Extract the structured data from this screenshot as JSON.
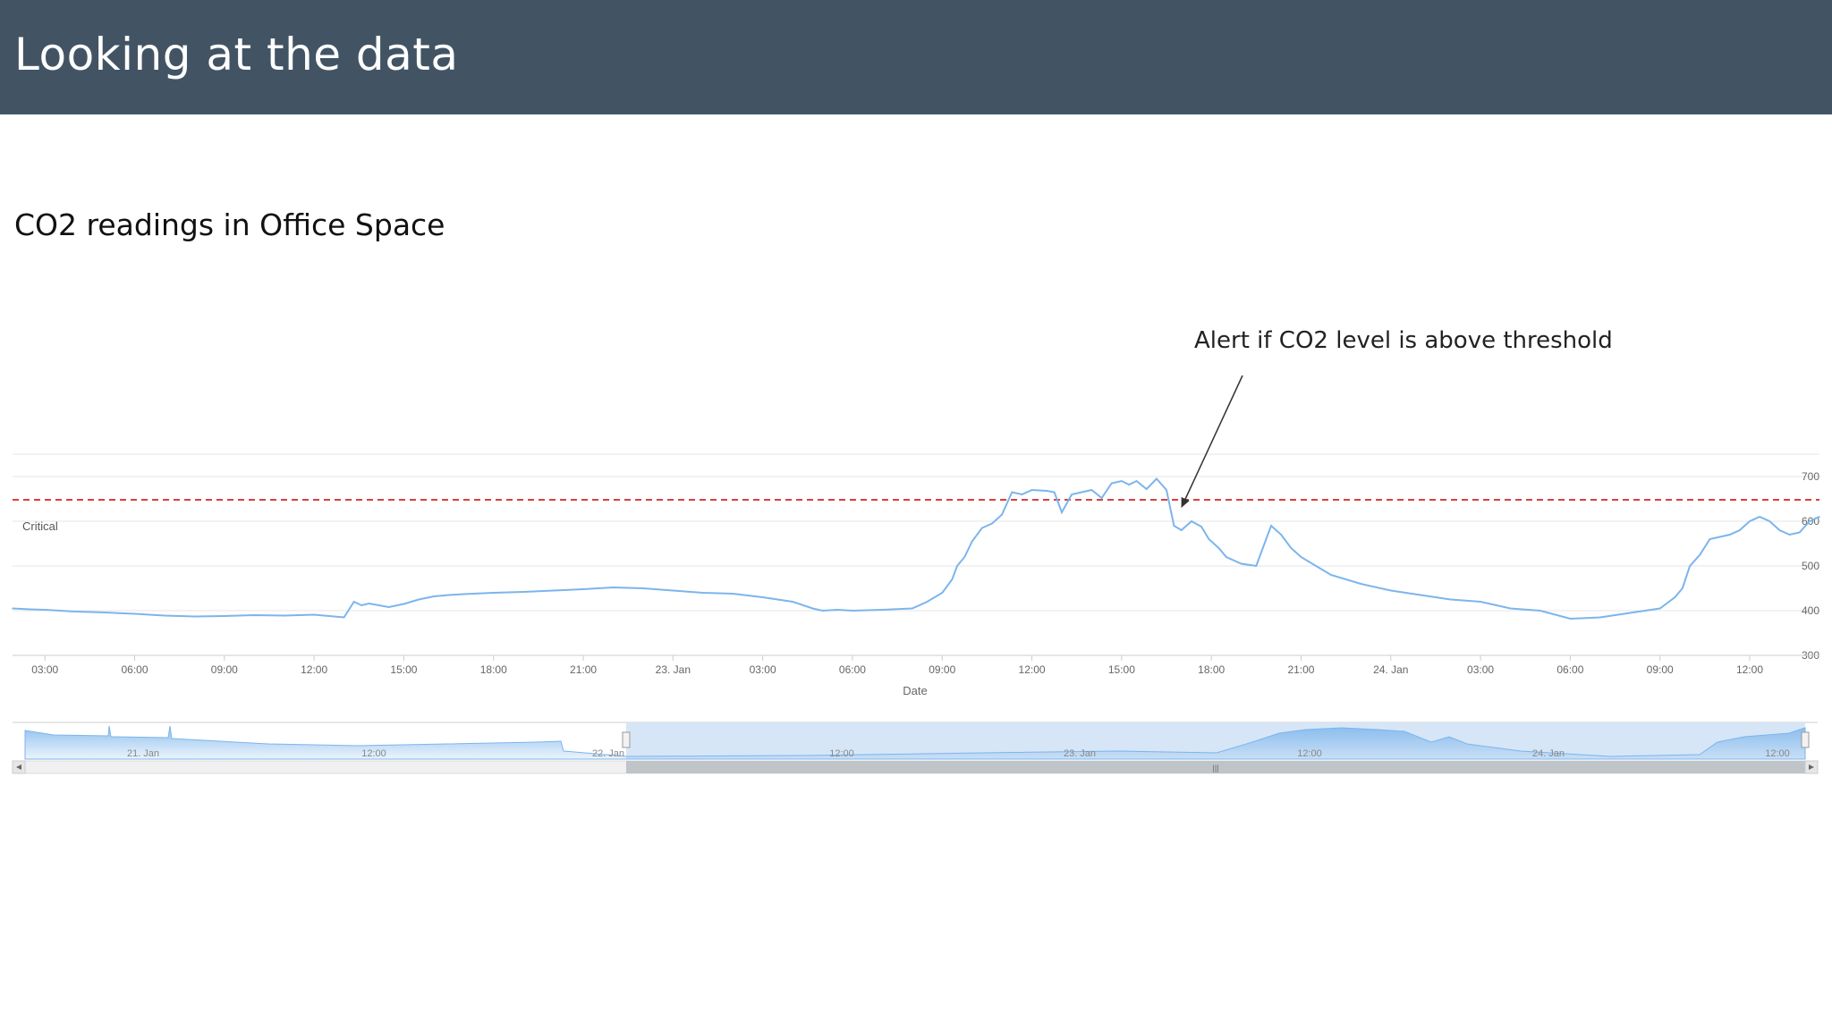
{
  "slide": {
    "title": "Looking at the data",
    "chart_title": "CO2 readings in Office Space",
    "callout": "Alert if CO2 level is above threshold"
  },
  "colors": {
    "header_bg": "#425464",
    "series": "#7cb5ec",
    "threshold": "#d94040",
    "grid": "#e6e6e6",
    "navigator_mask": "#d6e6f7",
    "scrollbar": "#bfc4c9"
  },
  "chart_data": {
    "type": "line",
    "title": "CO2 readings in Office Space",
    "xlabel": "Date",
    "ylabel": "",
    "x_range": [
      "2021-01-22T01:55",
      "2021-01-24T14:20"
    ],
    "ylim": [
      300,
      750
    ],
    "yticks": [
      300,
      400,
      500,
      600,
      700
    ],
    "xticks": [
      "03:00",
      "06:00",
      "09:00",
      "12:00",
      "15:00",
      "18:00",
      "21:00",
      "23. Jan",
      "03:00",
      "06:00",
      "09:00",
      "12:00",
      "15:00",
      "18:00",
      "21:00",
      "24. Jan",
      "03:00",
      "06:00",
      "09:00",
      "12:00"
    ],
    "grid": true,
    "threshold": {
      "label": "Critical",
      "value": 648
    },
    "series": [
      {
        "x": [
          "22T01:55",
          "22T02:30",
          "22T03:00",
          "22T04:00",
          "22T05:00",
          "22T06:00",
          "22T07:00",
          "22T08:00",
          "22T09:00",
          "22T10:00",
          "22T11:00",
          "22T12:00",
          "22T13:00",
          "22T13:20",
          "22T13:35",
          "22T13:50",
          "22T14:30",
          "22T15:00",
          "22T15:30",
          "22T16:00",
          "22T16:30",
          "22T17:00",
          "22T18:00",
          "22T19:00",
          "22T20:00",
          "22T21:00",
          "22T22:00",
          "22T23:00",
          "23T00:00",
          "23T01:00",
          "23T02:00",
          "23T03:00",
          "23T04:00",
          "23T04:40",
          "23T05:00",
          "23T05:30",
          "23T06:00",
          "23T07:00",
          "23T08:00",
          "23T08:30",
          "23T09:00",
          "23T09:20",
          "23T09:30",
          "23T09:45",
          "23T10:00",
          "23T10:20",
          "23T10:40",
          "23T11:00",
          "23T11:20",
          "23T11:40",
          "23T12:00",
          "23T12:30",
          "23T12:45",
          "23T13:00",
          "23T13:20",
          "23T13:40",
          "23T14:00",
          "23T14:20",
          "23T14:40",
          "23T15:00",
          "23T15:15",
          "23T15:30",
          "23T15:50",
          "23T16:10",
          "23T16:30",
          "23T16:45",
          "23T17:00",
          "23T17:20",
          "23T17:40",
          "23T17:55",
          "23T18:15",
          "23T18:30",
          "23T19:00",
          "23T19:30",
          "23T20:00",
          "23T20:20",
          "23T20:40",
          "23T21:00",
          "23T21:30",
          "23T22:00",
          "23T23:00",
          "24T00:00",
          "24T01:00",
          "24T02:00",
          "24T03:00",
          "24T04:00",
          "24T05:00",
          "24T06:00",
          "24T07:00",
          "24T08:00",
          "24T09:00",
          "24T09:30",
          "24T09:45",
          "24T10:00",
          "24T10:20",
          "24T10:40",
          "24T11:00",
          "24T11:20",
          "24T11:40",
          "24T12:00",
          "24T12:20",
          "24T12:40",
          "24T13:00",
          "24T13:20",
          "24T13:40",
          "24T14:00",
          "24T14:20"
        ],
        "y": [
          405,
          403,
          402,
          398,
          396,
          393,
          389,
          387,
          388,
          390,
          389,
          391,
          385,
          420,
          412,
          416,
          408,
          415,
          425,
          432,
          435,
          437,
          440,
          442,
          445,
          448,
          452,
          450,
          445,
          440,
          438,
          430,
          420,
          405,
          400,
          402,
          400,
          402,
          405,
          420,
          440,
          470,
          500,
          520,
          555,
          585,
          595,
          615,
          665,
          660,
          670,
          668,
          665,
          620,
          660,
          665,
          670,
          652,
          685,
          690,
          682,
          690,
          672,
          695,
          670,
          590,
          580,
          600,
          588,
          560,
          540,
          520,
          505,
          500,
          590,
          570,
          540,
          520,
          500,
          480,
          460,
          445,
          435,
          425,
          420,
          405,
          400,
          382,
          385,
          395,
          405,
          430,
          450,
          500,
          525,
          560,
          565,
          570,
          580,
          600,
          610,
          600,
          580,
          570,
          575,
          600,
          610
        ]
      }
    ],
    "navigator": {
      "labels": [
        "21. Jan",
        "12:00",
        "22. Jan",
        "12:00",
        "23. Jan",
        "12:00",
        "24. Jan",
        "12:00"
      ]
    }
  }
}
